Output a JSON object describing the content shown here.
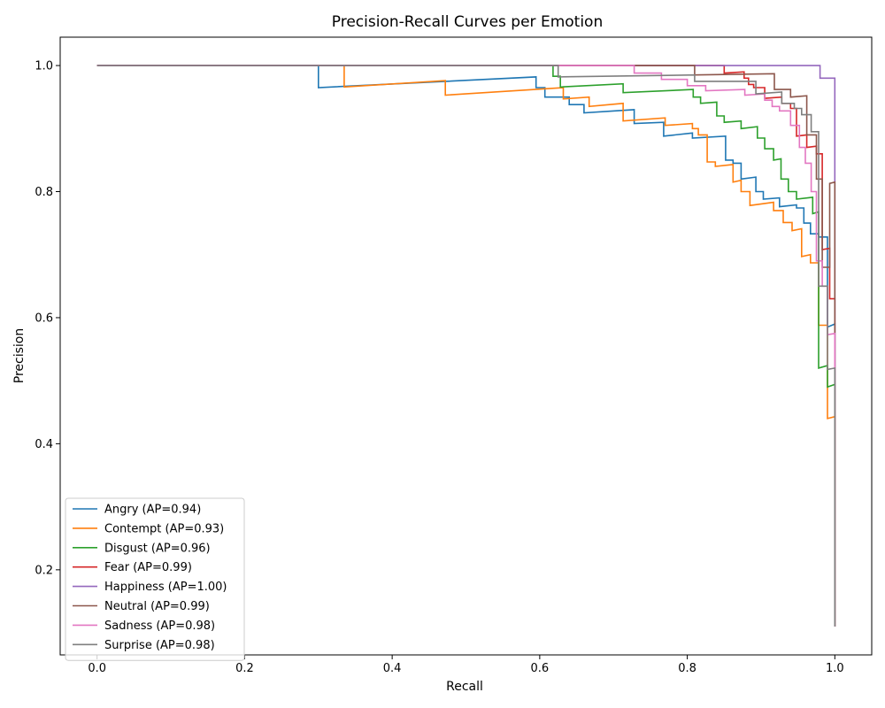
{
  "chart_data": {
    "type": "line",
    "title": "Precision-Recall Curves per Emotion",
    "xlabel": "Recall",
    "ylabel": "Precision",
    "xlim": [
      -0.05,
      1.05
    ],
    "ylim": [
      0.065,
      1.045
    ],
    "xticks": [
      "0.0",
      "0.2",
      "0.4",
      "0.6",
      "0.8",
      "1.0"
    ],
    "yticks": [
      "0.2",
      "0.4",
      "0.6",
      "0.8",
      "1.0"
    ],
    "grid": false,
    "legend_position": "lower-left",
    "series": [
      {
        "name": "Angry (AP=0.94)",
        "color": "#1f77b4",
        "points": [
          [
            0,
            1
          ],
          [
            0.3,
            1
          ],
          [
            0.3,
            0.965
          ],
          [
            0.595,
            0.982
          ],
          [
            0.595,
            0.965
          ],
          [
            0.607,
            0.965
          ],
          [
            0.607,
            0.95
          ],
          [
            0.64,
            0.95
          ],
          [
            0.64,
            0.938
          ],
          [
            0.66,
            0.938
          ],
          [
            0.66,
            0.925
          ],
          [
            0.728,
            0.93
          ],
          [
            0.728,
            0.908
          ],
          [
            0.768,
            0.91
          ],
          [
            0.768,
            0.888
          ],
          [
            0.807,
            0.893
          ],
          [
            0.807,
            0.885
          ],
          [
            0.852,
            0.888
          ],
          [
            0.852,
            0.85
          ],
          [
            0.862,
            0.85
          ],
          [
            0.862,
            0.845
          ],
          [
            0.873,
            0.845
          ],
          [
            0.873,
            0.82
          ],
          [
            0.893,
            0.823
          ],
          [
            0.893,
            0.8
          ],
          [
            0.903,
            0.8
          ],
          [
            0.903,
            0.788
          ],
          [
            0.925,
            0.79
          ],
          [
            0.925,
            0.776
          ],
          [
            0.948,
            0.779
          ],
          [
            0.948,
            0.774
          ],
          [
            0.958,
            0.774
          ],
          [
            0.958,
            0.75
          ],
          [
            0.967,
            0.75
          ],
          [
            0.967,
            0.733
          ],
          [
            0.978,
            0.733
          ],
          [
            0.978,
            0.728
          ],
          [
            0.99,
            0.728
          ],
          [
            0.99,
            0.585
          ],
          [
            1.0,
            0.59
          ],
          [
            1.0,
            0.11
          ]
        ]
      },
      {
        "name": "Contempt (AP=0.93)",
        "color": "#ff7f0e",
        "points": [
          [
            0,
            1
          ],
          [
            0.335,
            1
          ],
          [
            0.335,
            0.966
          ],
          [
            0.472,
            0.976
          ],
          [
            0.472,
            0.953
          ],
          [
            0.632,
            0.965
          ],
          [
            0.632,
            0.947
          ],
          [
            0.667,
            0.95
          ],
          [
            0.667,
            0.935
          ],
          [
            0.713,
            0.94
          ],
          [
            0.713,
            0.912
          ],
          [
            0.77,
            0.917
          ],
          [
            0.77,
            0.905
          ],
          [
            0.807,
            0.908
          ],
          [
            0.807,
            0.9
          ],
          [
            0.815,
            0.9
          ],
          [
            0.815,
            0.89
          ],
          [
            0.827,
            0.89
          ],
          [
            0.827,
            0.847
          ],
          [
            0.838,
            0.847
          ],
          [
            0.838,
            0.84
          ],
          [
            0.862,
            0.843
          ],
          [
            0.862,
            0.815
          ],
          [
            0.873,
            0.818
          ],
          [
            0.873,
            0.8
          ],
          [
            0.885,
            0.8
          ],
          [
            0.885,
            0.778
          ],
          [
            0.917,
            0.783
          ],
          [
            0.917,
            0.77
          ],
          [
            0.93,
            0.77
          ],
          [
            0.93,
            0.751
          ],
          [
            0.942,
            0.751
          ],
          [
            0.942,
            0.738
          ],
          [
            0.955,
            0.741
          ],
          [
            0.955,
            0.697
          ],
          [
            0.967,
            0.7
          ],
          [
            0.967,
            0.687
          ],
          [
            0.978,
            0.687
          ],
          [
            0.978,
            0.588
          ],
          [
            0.99,
            0.588
          ],
          [
            0.99,
            0.44
          ],
          [
            1.0,
            0.443
          ],
          [
            1.0,
            0.11
          ]
        ]
      },
      {
        "name": "Disgust (AP=0.96)",
        "color": "#2ca02c",
        "points": [
          [
            0,
            1
          ],
          [
            0.618,
            1
          ],
          [
            0.618,
            0.983
          ],
          [
            0.628,
            0.983
          ],
          [
            0.628,
            0.966
          ],
          [
            0.713,
            0.971
          ],
          [
            0.713,
            0.957
          ],
          [
            0.808,
            0.962
          ],
          [
            0.808,
            0.95
          ],
          [
            0.818,
            0.95
          ],
          [
            0.818,
            0.94
          ],
          [
            0.84,
            0.942
          ],
          [
            0.84,
            0.92
          ],
          [
            0.85,
            0.92
          ],
          [
            0.85,
            0.91
          ],
          [
            0.873,
            0.912
          ],
          [
            0.873,
            0.9
          ],
          [
            0.895,
            0.903
          ],
          [
            0.895,
            0.885
          ],
          [
            0.905,
            0.885
          ],
          [
            0.905,
            0.868
          ],
          [
            0.917,
            0.868
          ],
          [
            0.917,
            0.85
          ],
          [
            0.927,
            0.852
          ],
          [
            0.927,
            0.82
          ],
          [
            0.937,
            0.82
          ],
          [
            0.937,
            0.8
          ],
          [
            0.948,
            0.8
          ],
          [
            0.948,
            0.788
          ],
          [
            0.97,
            0.791
          ],
          [
            0.97,
            0.765
          ],
          [
            0.978,
            0.768
          ],
          [
            0.978,
            0.52
          ],
          [
            0.99,
            0.524
          ],
          [
            0.99,
            0.49
          ],
          [
            1.0,
            0.494
          ],
          [
            1.0,
            0.11
          ]
        ]
      },
      {
        "name": "Fear (AP=0.99)",
        "color": "#d62728",
        "points": [
          [
            0,
            1
          ],
          [
            0.85,
            1
          ],
          [
            0.85,
            0.988
          ],
          [
            0.877,
            0.99
          ],
          [
            0.877,
            0.98
          ],
          [
            0.883,
            0.98
          ],
          [
            0.883,
            0.97
          ],
          [
            0.89,
            0.97
          ],
          [
            0.89,
            0.965
          ],
          [
            0.905,
            0.965
          ],
          [
            0.905,
            0.948
          ],
          [
            0.928,
            0.95
          ],
          [
            0.928,
            0.94
          ],
          [
            0.94,
            0.94
          ],
          [
            0.94,
            0.932
          ],
          [
            0.948,
            0.932
          ],
          [
            0.948,
            0.888
          ],
          [
            0.962,
            0.89
          ],
          [
            0.962,
            0.87
          ],
          [
            0.975,
            0.872
          ],
          [
            0.975,
            0.86
          ],
          [
            0.983,
            0.86
          ],
          [
            0.983,
            0.708
          ],
          [
            0.993,
            0.71
          ],
          [
            0.993,
            0.63
          ],
          [
            1.0,
            0.63
          ],
          [
            1.0,
            0.11
          ]
        ]
      },
      {
        "name": "Happiness (AP=1.00)",
        "color": "#9467bd",
        "points": [
          [
            0,
            1
          ],
          [
            0.98,
            1
          ],
          [
            0.98,
            0.98
          ],
          [
            1.0,
            0.98
          ],
          [
            1.0,
            0.11
          ]
        ]
      },
      {
        "name": "Neutral (AP=0.99)",
        "color": "#8c564b",
        "points": [
          [
            0,
            1
          ],
          [
            0.81,
            1
          ],
          [
            0.81,
            0.985
          ],
          [
            0.918,
            0.987
          ],
          [
            0.918,
            0.962
          ],
          [
            0.94,
            0.962
          ],
          [
            0.94,
            0.95
          ],
          [
            0.962,
            0.952
          ],
          [
            0.962,
            0.89
          ],
          [
            0.975,
            0.89
          ],
          [
            0.975,
            0.82
          ],
          [
            0.983,
            0.82
          ],
          [
            0.983,
            0.68
          ],
          [
            0.993,
            0.68
          ],
          [
            0.993,
            0.813
          ],
          [
            1.0,
            0.815
          ],
          [
            1.0,
            0.11
          ]
        ]
      },
      {
        "name": "Sadness (AP=0.98)",
        "color": "#e377c2",
        "points": [
          [
            0,
            1
          ],
          [
            0.728,
            1
          ],
          [
            0.728,
            0.988
          ],
          [
            0.765,
            0.988
          ],
          [
            0.765,
            0.978
          ],
          [
            0.8,
            0.978
          ],
          [
            0.8,
            0.968
          ],
          [
            0.825,
            0.968
          ],
          [
            0.825,
            0.96
          ],
          [
            0.878,
            0.962
          ],
          [
            0.878,
            0.953
          ],
          [
            0.905,
            0.955
          ],
          [
            0.905,
            0.945
          ],
          [
            0.915,
            0.945
          ],
          [
            0.915,
            0.935
          ],
          [
            0.925,
            0.935
          ],
          [
            0.925,
            0.928
          ],
          [
            0.94,
            0.928
          ],
          [
            0.94,
            0.905
          ],
          [
            0.952,
            0.905
          ],
          [
            0.952,
            0.87
          ],
          [
            0.96,
            0.87
          ],
          [
            0.96,
            0.845
          ],
          [
            0.968,
            0.845
          ],
          [
            0.968,
            0.8
          ],
          [
            0.975,
            0.8
          ],
          [
            0.975,
            0.69
          ],
          [
            0.983,
            0.69
          ],
          [
            0.983,
            0.65
          ],
          [
            0.99,
            0.65
          ],
          [
            0.99,
            0.573
          ],
          [
            1.0,
            0.575
          ],
          [
            1.0,
            0.11
          ]
        ]
      },
      {
        "name": "Surprise (AP=0.98)",
        "color": "#7f7f7f",
        "points": [
          [
            0,
            1
          ],
          [
            0.625,
            1
          ],
          [
            0.625,
            0.982
          ],
          [
            0.81,
            0.985
          ],
          [
            0.81,
            0.975
          ],
          [
            0.893,
            0.975
          ],
          [
            0.893,
            0.955
          ],
          [
            0.928,
            0.958
          ],
          [
            0.928,
            0.94
          ],
          [
            0.945,
            0.94
          ],
          [
            0.945,
            0.932
          ],
          [
            0.955,
            0.932
          ],
          [
            0.955,
            0.922
          ],
          [
            0.968,
            0.922
          ],
          [
            0.968,
            0.895
          ],
          [
            0.978,
            0.895
          ],
          [
            0.978,
            0.65
          ],
          [
            0.99,
            0.65
          ],
          [
            0.99,
            0.518
          ],
          [
            1.0,
            0.52
          ],
          [
            1.0,
            0.11
          ]
        ]
      }
    ]
  }
}
